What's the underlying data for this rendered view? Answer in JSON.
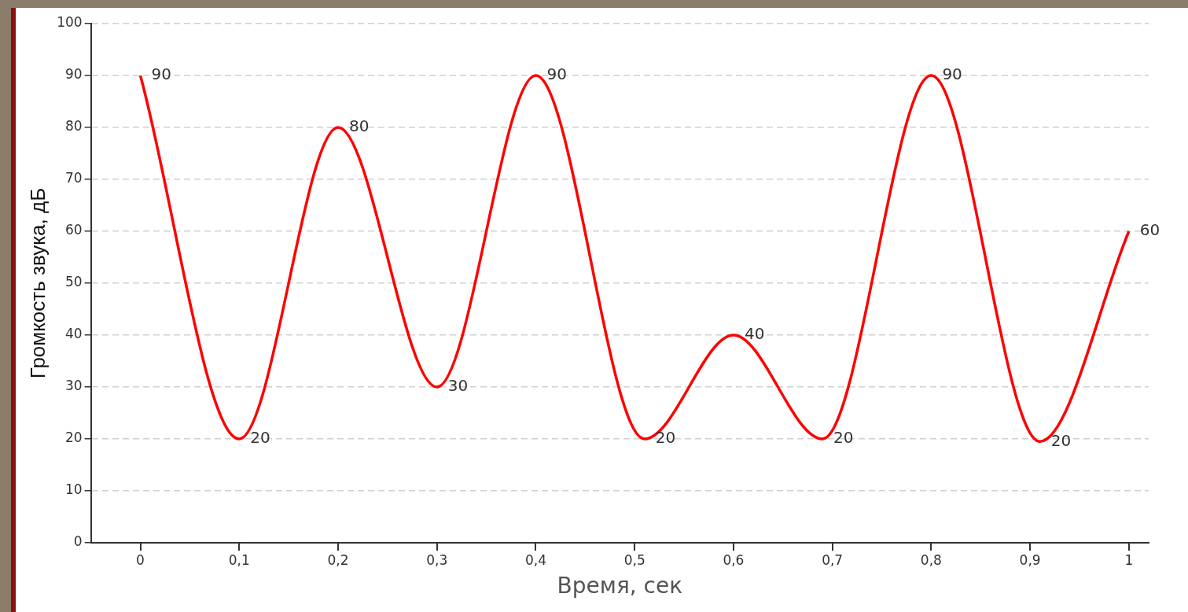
{
  "chart_data": {
    "type": "line",
    "xlabel": "Время, сек",
    "ylabel": "Громкость звука, дБ",
    "x": [
      0,
      0.1,
      0.2,
      0.3,
      0.4,
      0.51,
      0.6,
      0.69,
      0.8,
      0.91,
      1
    ],
    "series": [
      {
        "color": "#ff0000",
        "values": [
          90,
          20,
          80,
          30,
          90,
          20,
          40,
          20,
          90,
          19.5,
          60
        ],
        "value_labels": [
          "90",
          "20",
          "80",
          "30",
          "90",
          "20",
          "40",
          "20",
          "90",
          "20",
          "60"
        ]
      }
    ],
    "xlim": [
      -0.05,
      1.02
    ],
    "xticks": [
      0,
      {
        "value": 0.1,
        "label": "0,1"
      },
      {
        "value": 0.2,
        "label": "0,2"
      },
      {
        "value": 0.3,
        "label": "0,3"
      },
      {
        "value": 0.4,
        "label": "0,4"
      },
      {
        "value": 0.5,
        "label": "0,5"
      },
      {
        "value": 0.6,
        "label": "0,6"
      },
      {
        "value": 0.7,
        "label": "0,7"
      },
      {
        "value": 0.8,
        "label": "0,8"
      },
      {
        "value": 0.9,
        "label": "0,9"
      },
      1
    ],
    "ylim": [
      0,
      100
    ],
    "yticks": [
      0,
      10,
      20,
      30,
      40,
      50,
      60,
      70,
      80,
      90,
      100
    ],
    "grid": "y",
    "legend": false,
    "marker": "none",
    "line_style": "solid"
  }
}
